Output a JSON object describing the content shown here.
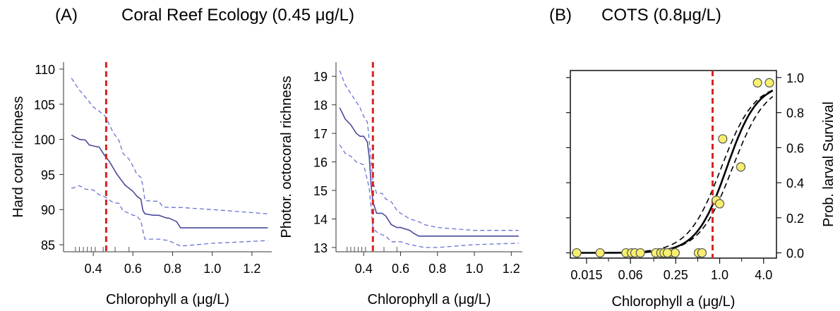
{
  "headers": {
    "a_letter": "(A)",
    "a_title": "Coral Reef Ecology (0.45 μg/L)",
    "b_letter": "(B)",
    "b_title": "COTS (0.8μg/L)"
  },
  "colors": {
    "line": "#4a4a9c",
    "dash": "#6a72d4",
    "threshold": "#d62424",
    "point_fill": "#f7ef6e",
    "point_edge": "#555555",
    "curve": "#000000"
  },
  "chart_data": [
    {
      "type": "line",
      "title": "",
      "xlabel": "Chlorophyll a (μg/L)",
      "ylabel": "Hard coral richness",
      "xlim": [
        0.25,
        1.3
      ],
      "ylim": [
        84,
        111
      ],
      "xticks": [
        0.4,
        0.6,
        0.8,
        1.0,
        1.2
      ],
      "xtick_labels": [
        "0.4",
        "0.6",
        "0.8",
        "1.0",
        "1.2"
      ],
      "yticks": [
        85,
        90,
        95,
        100,
        105,
        110
      ],
      "ytick_labels": [
        "85",
        "90",
        "95",
        "100",
        "105",
        "110"
      ],
      "threshold": 0.465,
      "rug": [
        0.31,
        0.33,
        0.35,
        0.37,
        0.39,
        0.41,
        0.45,
        0.51,
        0.58
      ],
      "series": [
        {
          "role": "fit",
          "x": [
            0.29,
            0.33,
            0.36,
            0.38,
            0.41,
            0.43,
            0.45,
            0.46,
            0.48,
            0.52,
            0.56,
            0.6,
            0.62,
            0.64,
            0.65,
            0.66,
            0.7,
            0.73,
            0.77,
            0.78,
            0.82,
            0.84,
            0.9,
            1.0,
            1.2,
            1.28
          ],
          "values": [
            100.6,
            100.0,
            99.9,
            99.2,
            99.0,
            98.9,
            98.0,
            97.6,
            96.9,
            95.0,
            93.5,
            92.6,
            91.9,
            91.5,
            89.9,
            89.4,
            89.2,
            89.2,
            88.8,
            88.8,
            88.3,
            87.4,
            87.4,
            87.4,
            87.4,
            87.4
          ]
        },
        {
          "role": "upper",
          "x": [
            0.29,
            0.33,
            0.37,
            0.4,
            0.43,
            0.46,
            0.5,
            0.53,
            0.55,
            0.58,
            0.6,
            0.62,
            0.64,
            0.65,
            0.66,
            0.7,
            0.73,
            0.75,
            0.78,
            0.84,
            1.0,
            1.28
          ],
          "values": [
            108.7,
            107.0,
            105.7,
            104.6,
            104.0,
            103.3,
            101.0,
            99.8,
            98.0,
            97.2,
            96.2,
            95.0,
            94.6,
            93.4,
            91.3,
            91.2,
            91.2,
            90.4,
            90.3,
            90.3,
            90.0,
            89.4
          ]
        },
        {
          "role": "lower",
          "x": [
            0.29,
            0.33,
            0.36,
            0.4,
            0.43,
            0.46,
            0.5,
            0.53,
            0.55,
            0.58,
            0.6,
            0.62,
            0.64,
            0.65,
            0.66,
            0.7,
            0.73,
            0.78,
            0.84,
            1.0,
            1.28
          ],
          "values": [
            93.0,
            93.4,
            92.9,
            92.8,
            92.1,
            91.8,
            91.0,
            90.9,
            89.8,
            89.5,
            89.2,
            89.1,
            88.4,
            87.0,
            85.8,
            85.8,
            85.8,
            85.6,
            84.8,
            85.2,
            85.6
          ]
        }
      ]
    },
    {
      "type": "line",
      "title": "",
      "xlabel": "Chlorophyll a (μg/L)",
      "ylabel": "Photor. octocoral richness",
      "xlim": [
        0.25,
        1.26
      ],
      "ylim": [
        12.85,
        19.5
      ],
      "xticks": [
        0.4,
        0.6,
        0.8,
        1.0,
        1.2
      ],
      "xtick_labels": [
        "0.4",
        "0.6",
        "0.8",
        "1.0",
        "1.2"
      ],
      "yticks": [
        13,
        14,
        15,
        16,
        17,
        18,
        19
      ],
      "ytick_labels": [
        "13",
        "14",
        "15",
        "16",
        "17",
        "18",
        "19"
      ],
      "threshold": 0.45,
      "rug": [
        0.31,
        0.33,
        0.35,
        0.37,
        0.39,
        0.41,
        0.45,
        0.51,
        0.58
      ],
      "series": [
        {
          "role": "fit",
          "x": [
            0.27,
            0.3,
            0.33,
            0.36,
            0.38,
            0.4,
            0.42,
            0.43,
            0.44,
            0.45,
            0.46,
            0.47,
            0.5,
            0.52,
            0.55,
            0.58,
            0.6,
            0.65,
            0.67,
            0.7,
            0.73,
            0.8,
            1.0,
            1.24
          ],
          "values": [
            17.9,
            17.5,
            17.3,
            17.0,
            16.9,
            16.9,
            16.7,
            16.2,
            15.2,
            14.6,
            14.4,
            14.2,
            14.2,
            14.1,
            13.8,
            13.7,
            13.7,
            13.6,
            13.5,
            13.4,
            13.4,
            13.4,
            13.4,
            13.4
          ]
        },
        {
          "role": "upper",
          "x": [
            0.27,
            0.3,
            0.33,
            0.36,
            0.38,
            0.4,
            0.42,
            0.43,
            0.44,
            0.45,
            0.46,
            0.47,
            0.5,
            0.52,
            0.55,
            0.58,
            0.6,
            0.65,
            0.7,
            0.73,
            0.8,
            1.0,
            1.24
          ],
          "values": [
            19.2,
            18.7,
            18.4,
            18.1,
            17.9,
            17.6,
            17.4,
            16.8,
            16.0,
            15.3,
            15.1,
            14.9,
            14.9,
            14.7,
            14.6,
            14.3,
            14.2,
            14.0,
            13.9,
            13.8,
            13.7,
            13.6,
            13.6
          ]
        },
        {
          "role": "lower",
          "x": [
            0.27,
            0.3,
            0.33,
            0.36,
            0.4,
            0.43,
            0.44,
            0.45,
            0.46,
            0.48,
            0.52,
            0.55,
            0.6,
            0.65,
            0.73,
            0.8,
            1.0,
            1.24
          ],
          "values": [
            16.6,
            16.3,
            16.2,
            16.0,
            15.9,
            15.1,
            14.4,
            13.7,
            13.6,
            13.5,
            13.4,
            13.2,
            13.2,
            13.1,
            13.0,
            13.0,
            13.1,
            13.15
          ]
        }
      ]
    },
    {
      "type": "scatter",
      "title": "",
      "xlabel": "Chlorophyll a (μg/L)",
      "ylabel": "Prob. larval Survival",
      "x_scale": "log",
      "xlim": [
        0.009,
        6.0
      ],
      "ylim": [
        -0.03,
        1.04
      ],
      "xticks": [
        0.015,
        0.06,
        0.25,
        1.0,
        4.0
      ],
      "xtick_labels": [
        "0.015",
        "0.06",
        "0.25",
        "1.0",
        "4.0"
      ],
      "xminor": [
        0.03,
        0.125,
        0.5,
        2.0
      ],
      "yticks": [
        0.0,
        0.2,
        0.4,
        0.6,
        0.8,
        1.0
      ],
      "ytick_labels": [
        "0.0",
        "0.2",
        "0.4",
        "0.6",
        "0.8",
        "1.0"
      ],
      "left_ticks": [
        0.0,
        0.2,
        0.4,
        0.6,
        0.8,
        1.0
      ],
      "threshold": 0.8,
      "points": {
        "x": [
          0.011,
          0.023,
          0.052,
          0.062,
          0.069,
          0.082,
          0.133,
          0.157,
          0.173,
          0.215,
          0.245,
          0.192,
          0.512,
          0.572,
          0.9,
          1.0,
          1.1,
          1.95,
          3.3,
          4.8
        ],
        "y": [
          0.0,
          0.0,
          0.0,
          0.0,
          0.0,
          0.0,
          0.0,
          0.0,
          0.0,
          0.0,
          0.0,
          0.0,
          0.0,
          0.0,
          0.3,
          0.28,
          0.65,
          0.49,
          0.97,
          0.97
        ]
      },
      "curves": [
        {
          "role": "fit",
          "x0": 1.25,
          "k": 4.8
        },
        {
          "role": "upper",
          "x0": 1.05,
          "k": 4.4
        },
        {
          "role": "lower",
          "x0": 1.5,
          "k": 4.4
        }
      ]
    }
  ]
}
